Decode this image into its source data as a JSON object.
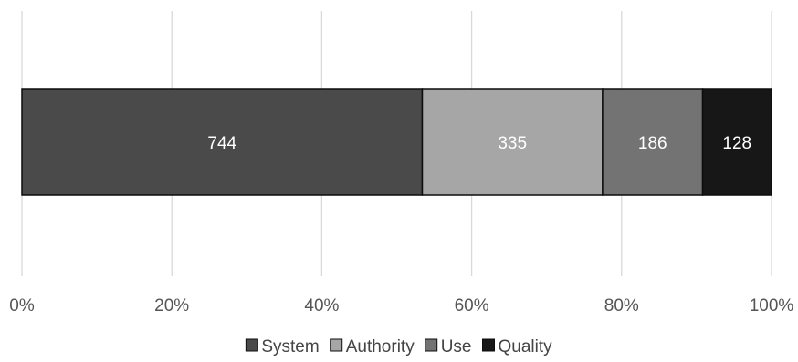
{
  "chart_data": {
    "type": "bar",
    "orientation": "horizontal",
    "stacked": "percent",
    "title": "",
    "xlabel": "",
    "ylabel": "",
    "xlim": [
      0,
      100
    ],
    "x_ticks": [
      "0%",
      "20%",
      "40%",
      "60%",
      "80%",
      "100%"
    ],
    "grid": "vertical",
    "legend_position": "bottom",
    "series": [
      {
        "name": "System",
        "value": 744,
        "color": "#4a4a4a"
      },
      {
        "name": "Authority",
        "value": 335,
        "color": "#a6a6a6"
      },
      {
        "name": "Use",
        "value": 186,
        "color": "#737373"
      },
      {
        "name": "Quality",
        "value": 128,
        "color": "#171717"
      }
    ]
  }
}
